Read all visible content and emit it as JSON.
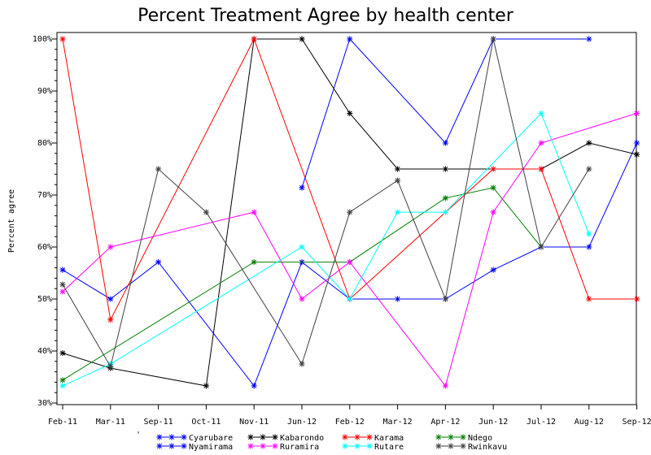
{
  "chart_data": {
    "type": "line",
    "title": "Percent Treatment Agree by health center",
    "xlabel": "",
    "ylabel": "Percent agree",
    "ylim": [
      30,
      100
    ],
    "y_ticks": [
      "30%",
      "40%",
      "50%",
      "60%",
      "70%",
      "80%",
      "90%",
      "100%"
    ],
    "categories": [
      "Feb-11",
      "Mar-11",
      "Sep-11",
      "Oct-11",
      "Nov-11",
      "Jun-12",
      "Feb-12",
      "Mar-12",
      "Apr-12",
      "Jun-12",
      "Jul-12",
      "Aug-12",
      "Sep-12"
    ],
    "legend_marker": "'",
    "series": [
      {
        "name": "Cyarubare",
        "color": "#0000ff",
        "values": [
          55.6,
          50.0,
          57.1,
          null,
          33.3,
          57.1,
          50.0,
          50.0,
          50.0,
          55.6,
          60.0,
          60.0,
          80.0
        ]
      },
      {
        "name": "Kabarondo",
        "color": "#000000",
        "values": [
          39.6,
          36.7,
          null,
          33.3,
          100.0,
          100.0,
          85.7,
          75.0,
          75.0,
          null,
          75.0,
          80.0,
          77.8
        ]
      },
      {
        "name": "Karama",
        "color": "#ff0000",
        "values": [
          100.0,
          46.0,
          null,
          null,
          100.0,
          null,
          50.0,
          null,
          null,
          75.0,
          75.0,
          50.0,
          50.0
        ]
      },
      {
        "name": "Ndego",
        "color": "#008000",
        "values": [
          34.4,
          null,
          null,
          null,
          57.1,
          null,
          57.1,
          null,
          69.4,
          71.4,
          60.0,
          null,
          null
        ]
      },
      {
        "name": "Nyamirama",
        "color": "#0000ff",
        "values": [
          null,
          null,
          null,
          null,
          null,
          71.4,
          100.0,
          null,
          80.0,
          100.0,
          null,
          100.0,
          null
        ]
      },
      {
        "name": "Ruramira",
        "color": "#ff00ff",
        "values": [
          51.4,
          60.0,
          null,
          null,
          66.7,
          50.0,
          57.1,
          null,
          33.3,
          66.7,
          80.0,
          null,
          85.7
        ]
      },
      {
        "name": "Rutare",
        "color": "#00ffff",
        "values": [
          33.3,
          37.5,
          null,
          null,
          null,
          60.0,
          50.0,
          66.7,
          66.7,
          null,
          85.7,
          62.5,
          null
        ]
      },
      {
        "name": "Rwinkavu",
        "color": "#404040",
        "values": [
          52.8,
          37.0,
          75.0,
          66.7,
          null,
          37.5,
          66.7,
          72.8,
          50.0,
          100.0,
          60.0,
          75.0,
          null
        ]
      }
    ]
  }
}
